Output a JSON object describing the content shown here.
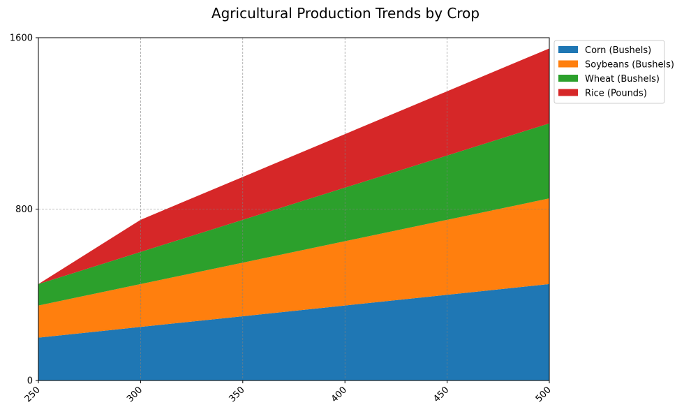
{
  "chart_data": {
    "type": "area",
    "stacked": true,
    "title": "Agricultural Production Trends by Crop",
    "xlabel": "",
    "ylabel": "",
    "x": [
      250,
      300,
      350,
      400,
      450,
      500
    ],
    "x_tick_labels": [
      "250",
      "300",
      "350",
      "400",
      "450",
      "500"
    ],
    "y_ticks": [
      0,
      800,
      1600
    ],
    "y_tick_labels": [
      "0",
      "800",
      "1600"
    ],
    "xlim": [
      250,
      500
    ],
    "ylim": [
      0,
      1600
    ],
    "grid": true,
    "legend_position": "outside-top-right",
    "series": [
      {
        "name": "Corn (Bushels)",
        "color": "#1f77b4",
        "values": [
          200,
          250,
          300,
          350,
          400,
          450
        ]
      },
      {
        "name": "Soybeans (Bushels)",
        "color": "#ff7f0e",
        "values": [
          150,
          200,
          250,
          300,
          350,
          400
        ]
      },
      {
        "name": "Wheat (Bushels)",
        "color": "#2ca02c",
        "values": [
          100,
          150,
          200,
          250,
          300,
          350
        ]
      },
      {
        "name": "Rice (Pounds)",
        "color": "#d62728",
        "values": [
          0,
          150,
          200,
          250,
          300,
          350
        ]
      }
    ]
  }
}
